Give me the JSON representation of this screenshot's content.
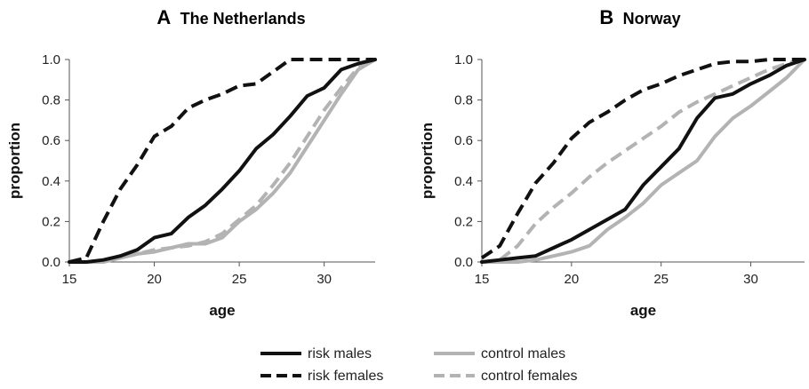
{
  "chart_data": [
    {
      "type": "line",
      "panel": "A",
      "title": "The Netherlands",
      "xlabel": "age",
      "ylabel": "proportion",
      "xlim": [
        15,
        33
      ],
      "ylim": [
        0,
        1
      ],
      "x_ticks": [
        15,
        20,
        25,
        30
      ],
      "y_ticks": [
        "0.0",
        "0.2",
        "0.4",
        "0.6",
        "0.8",
        "1.0"
      ],
      "grid": false,
      "x": [
        15,
        16,
        17,
        18,
        19,
        20,
        21,
        22,
        23,
        24,
        25,
        26,
        27,
        28,
        29,
        30,
        31,
        32,
        33
      ],
      "series": [
        {
          "name": "risk males",
          "style": "solid",
          "color": "#111111",
          "values": [
            0.0,
            0.0,
            0.01,
            0.03,
            0.06,
            0.12,
            0.14,
            0.22,
            0.28,
            0.36,
            0.45,
            0.56,
            0.63,
            0.72,
            0.82,
            0.86,
            0.95,
            0.98,
            1.0
          ]
        },
        {
          "name": "risk females",
          "style": "dashed",
          "color": "#111111",
          "values": [
            0.0,
            0.02,
            0.2,
            0.36,
            0.48,
            0.62,
            0.67,
            0.76,
            0.8,
            0.83,
            0.87,
            0.88,
            0.94,
            1.0,
            1.0,
            1.0,
            1.0,
            1.0,
            1.0
          ]
        },
        {
          "name": "control males",
          "style": "solid",
          "color": "#b3b3b3",
          "values": [
            0.0,
            0.0,
            0.0,
            0.02,
            0.04,
            0.05,
            0.07,
            0.09,
            0.09,
            0.12,
            0.2,
            0.26,
            0.34,
            0.44,
            0.57,
            0.7,
            0.83,
            0.95,
            1.0
          ]
        },
        {
          "name": "control females",
          "style": "dashed",
          "color": "#b3b3b3",
          "values": [
            0.0,
            0.0,
            0.0,
            0.02,
            0.04,
            0.06,
            0.07,
            0.08,
            0.1,
            0.14,
            0.21,
            0.28,
            0.38,
            0.49,
            0.62,
            0.75,
            0.86,
            0.96,
            1.0
          ]
        }
      ]
    },
    {
      "type": "line",
      "panel": "B",
      "title": "Norway",
      "xlabel": "age",
      "ylabel": "proportion",
      "xlim": [
        15,
        33
      ],
      "ylim": [
        0,
        1
      ],
      "x_ticks": [
        15,
        20,
        25,
        30
      ],
      "y_ticks": [
        "0.0",
        "0.2",
        "0.4",
        "0.6",
        "0.8",
        "1.0"
      ],
      "grid": false,
      "x": [
        15,
        16,
        17,
        18,
        19,
        20,
        21,
        22,
        23,
        24,
        25,
        26,
        27,
        28,
        29,
        30,
        31,
        32,
        33
      ],
      "series": [
        {
          "name": "risk males",
          "style": "solid",
          "color": "#111111",
          "values": [
            0.0,
            0.01,
            0.02,
            0.03,
            0.07,
            0.11,
            0.16,
            0.21,
            0.26,
            0.38,
            0.47,
            0.56,
            0.71,
            0.81,
            0.83,
            0.88,
            0.92,
            0.97,
            1.0
          ]
        },
        {
          "name": "risk females",
          "style": "dashed",
          "color": "#111111",
          "values": [
            0.02,
            0.08,
            0.24,
            0.39,
            0.49,
            0.61,
            0.69,
            0.74,
            0.8,
            0.85,
            0.88,
            0.92,
            0.95,
            0.98,
            0.99,
            0.99,
            1.0,
            1.0,
            1.0
          ]
        },
        {
          "name": "control males",
          "style": "solid",
          "color": "#b3b3b3",
          "values": [
            0.0,
            0.0,
            0.0,
            0.01,
            0.03,
            0.05,
            0.08,
            0.16,
            0.22,
            0.29,
            0.38,
            0.44,
            0.5,
            0.62,
            0.71,
            0.77,
            0.84,
            0.91,
            1.0
          ]
        },
        {
          "name": "control females",
          "style": "dashed",
          "color": "#b3b3b3",
          "values": [
            0.0,
            0.01,
            0.08,
            0.19,
            0.27,
            0.34,
            0.42,
            0.49,
            0.55,
            0.61,
            0.67,
            0.74,
            0.79,
            0.83,
            0.87,
            0.91,
            0.95,
            0.98,
            1.0
          ]
        }
      ]
    }
  ],
  "legend": {
    "placement": "bottom-center",
    "items": [
      {
        "name": "risk males",
        "style": "solid",
        "color": "#111111"
      },
      {
        "name": "control males",
        "style": "solid",
        "color": "#b3b3b3"
      },
      {
        "name": "risk females",
        "style": "dashed",
        "color": "#111111"
      },
      {
        "name": "control females",
        "style": "dashed",
        "color": "#b3b3b3"
      }
    ]
  }
}
